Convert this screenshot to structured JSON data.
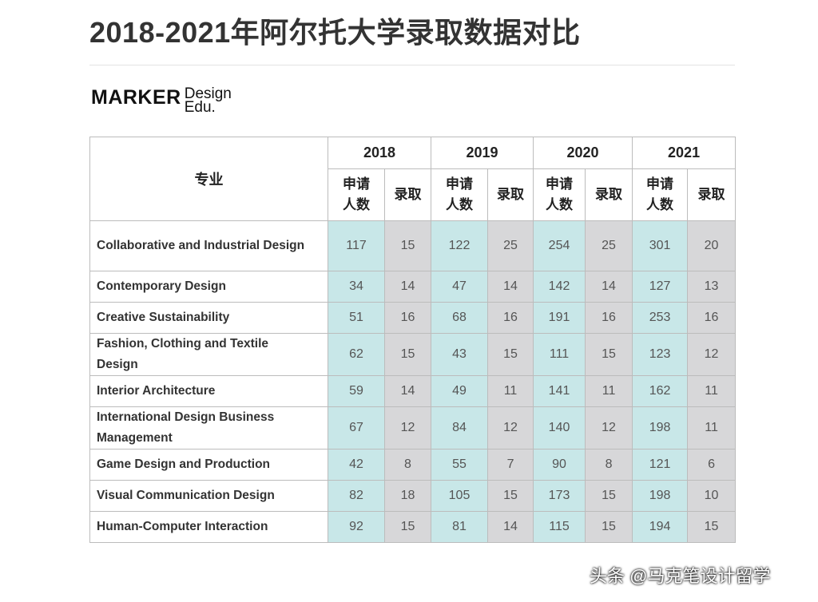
{
  "header": {
    "title": "2018-2021年阿尔托大学录取数据对比"
  },
  "logo": {
    "main": "MARKER",
    "sub1": "Design",
    "sub2": "Edu."
  },
  "table": {
    "corner": "专业",
    "years": [
      "2018",
      "2019",
      "2020",
      "2021"
    ],
    "subheaders": [
      [
        "申请人数",
        "录取"
      ],
      [
        "申请人数",
        "录取"
      ],
      [
        "申请人数",
        "录取"
      ],
      [
        "申请人数",
        "录取"
      ]
    ],
    "rows": [
      {
        "major": "Collaborative and Industrial Design",
        "values": [
          117,
          15,
          122,
          25,
          254,
          25,
          301,
          20
        ]
      },
      {
        "major": "Contemporary Design",
        "values": [
          34,
          14,
          47,
          14,
          142,
          14,
          127,
          13
        ]
      },
      {
        "major": "Creative Sustainability",
        "values": [
          51,
          16,
          68,
          16,
          191,
          16,
          253,
          16
        ]
      },
      {
        "major": "Fashion, Clothing and Textile Design",
        "values": [
          62,
          15,
          43,
          15,
          111,
          15,
          123,
          12
        ]
      },
      {
        "major": "Interior Architecture",
        "values": [
          59,
          14,
          49,
          11,
          141,
          11,
          162,
          11
        ]
      },
      {
        "major": "International Design Business Management",
        "values": [
          67,
          12,
          84,
          12,
          140,
          12,
          198,
          11
        ]
      },
      {
        "major": "Game Design and Production",
        "values": [
          42,
          8,
          55,
          7,
          90,
          8,
          121,
          6
        ]
      },
      {
        "major": "Visual Communication Design",
        "values": [
          82,
          18,
          105,
          15,
          173,
          15,
          198,
          10
        ]
      },
      {
        "major": "Human-Computer Interaction",
        "values": [
          92,
          15,
          81,
          14,
          115,
          15,
          194,
          15
        ]
      }
    ]
  },
  "watermark": "头条 @马克笔设计留学"
}
